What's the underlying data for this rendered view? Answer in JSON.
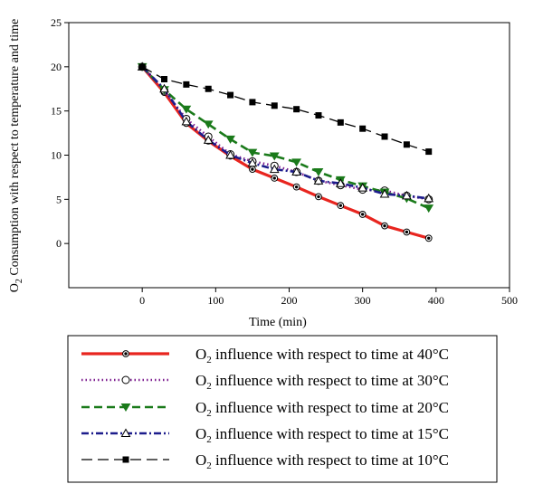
{
  "chart_data": {
    "type": "line",
    "xlabel": "Time (min)",
    "ylabel": {
      "main": "O",
      "sub": "2",
      "rest": " Consumption with respect to temperature and time"
    },
    "xlim": [
      -100,
      500
    ],
    "ylim": [
      -5,
      25
    ],
    "x_ticks": [
      0,
      100,
      200,
      300,
      400,
      500
    ],
    "y_ticks": [
      0,
      5,
      10,
      15,
      20,
      25
    ],
    "legend_position": "below plot",
    "series": [
      {
        "key": "40C",
        "legend": {
          "prefix": "O",
          "sub": "2",
          "suffix": " influence with respect to time at 40°C"
        },
        "color": "#e8251f",
        "dash": "",
        "width": 3.2,
        "marker": "circle-dot",
        "x": [
          0,
          30,
          60,
          90,
          120,
          150,
          180,
          210,
          240,
          270,
          300,
          330,
          360,
          390
        ],
        "y": [
          20,
          17.1,
          13.6,
          11.6,
          9.9,
          8.4,
          7.4,
          6.4,
          5.3,
          4.3,
          3.3,
          2.0,
          1.3,
          0.6
        ]
      },
      {
        "key": "30C",
        "legend": {
          "prefix": "O",
          "sub": "2",
          "suffix": " influence with respect to time at 30°C"
        },
        "color": "#7d1d8f",
        "dash": "1.5,3",
        "width": 2.6,
        "marker": "open-circle",
        "x": [
          0,
          30,
          60,
          90,
          120,
          150,
          180,
          210,
          240,
          270,
          300,
          330,
          360,
          390
        ],
        "y": [
          20,
          17.3,
          14.1,
          12.1,
          10.1,
          9.3,
          8.8,
          8.1,
          7.1,
          6.6,
          6.1,
          6.0,
          5.4,
          5.0
        ]
      },
      {
        "key": "20C",
        "legend": {
          "prefix": "O",
          "sub": "2",
          "suffix": " influence with respect to time at 20°C"
        },
        "color": "#1a7a1a",
        "dash": "9,5",
        "width": 2.6,
        "marker": "down-triangle",
        "x": [
          0,
          30,
          60,
          90,
          120,
          150,
          180,
          210,
          240,
          270,
          300,
          330,
          360,
          390
        ],
        "y": [
          20,
          17.4,
          15.2,
          13.5,
          11.8,
          10.3,
          9.9,
          9.2,
          8.1,
          7.2,
          6.5,
          5.8,
          5.1,
          4.0
        ]
      },
      {
        "key": "15C",
        "legend": {
          "prefix": "O",
          "sub": "2",
          "suffix": " influence with respect to time at 15°C"
        },
        "color": "#1d1d8c",
        "dash": "8,3,2,3",
        "width": 2.6,
        "marker": "open-triangle",
        "x": [
          0,
          30,
          60,
          90,
          120,
          150,
          180,
          210,
          240,
          270,
          300,
          330,
          360,
          390
        ],
        "y": [
          20,
          17.5,
          13.8,
          11.7,
          10.0,
          9.1,
          8.4,
          8.1,
          7.1,
          6.8,
          6.3,
          5.6,
          5.4,
          5.1
        ]
      },
      {
        "key": "10C",
        "legend": {
          "prefix": "O",
          "sub": "2",
          "suffix": " influence with respect to time at 10°C"
        },
        "color": "#000000",
        "dash": "12,6",
        "width": 1.3,
        "marker": "square",
        "x": [
          0,
          30,
          60,
          90,
          120,
          150,
          180,
          210,
          240,
          270,
          300,
          330,
          360,
          390
        ],
        "y": [
          20,
          18.6,
          18.0,
          17.5,
          16.8,
          16.0,
          15.6,
          15.2,
          14.5,
          13.7,
          13.0,
          12.1,
          11.2,
          10.4
        ]
      }
    ]
  }
}
